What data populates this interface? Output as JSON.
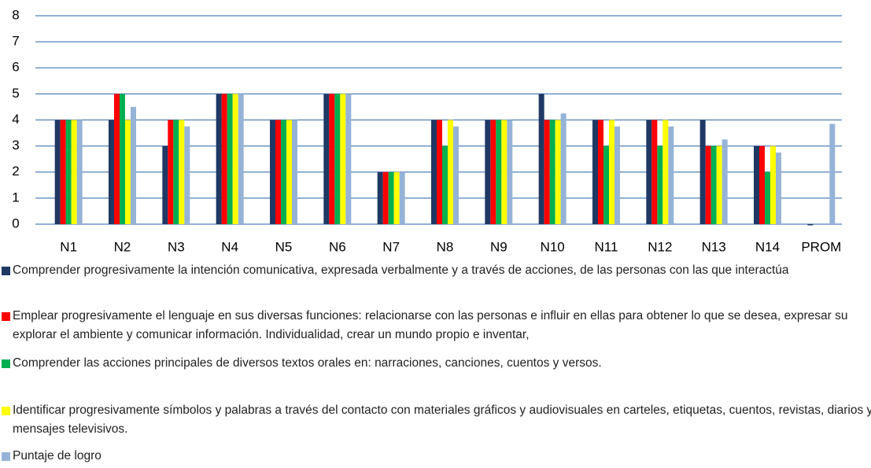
{
  "chart_data": {
    "type": "bar",
    "categories": [
      "N1",
      "N2",
      "N3",
      "N4",
      "N5",
      "N6",
      "N7",
      "N8",
      "N9",
      "N10",
      "N11",
      "N12",
      "N13",
      "N14",
      "PROM"
    ],
    "series": [
      {
        "name": "Comprender progresivamente la intención comunicativa, expresada verbalmente y a través de acciones, de las personas con las que interactúa",
        "color": "#1f3864",
        "values": [
          4,
          4,
          3,
          5,
          4,
          5,
          2,
          4,
          4,
          5,
          4,
          4,
          4,
          3,
          0
        ]
      },
      {
        "name": "Emplear progresivamente el lenguaje en sus diversas funciones: relacionarse con las personas e influir en ellas para obtener lo que se desea, expresar su explorar el ambiente y comunicar información. Individualidad, crear un mundo propio e inventar,",
        "color": "#ff0000",
        "values": [
          4,
          5,
          4,
          5,
          4,
          5,
          2,
          4,
          4,
          4,
          4,
          4,
          3,
          3,
          null
        ]
      },
      {
        "name": "Comprender las acciones principales de diversos textos orales en: narraciones, canciones, cuentos y versos.",
        "color": "#00b050",
        "values": [
          4,
          5,
          4,
          5,
          4,
          5,
          2,
          3,
          4,
          4,
          3,
          3,
          3,
          2,
          null
        ]
      },
      {
        "name": "Identificar progresivamente símbolos y palabras a través del contacto con materiales gráficos y audiovisuales en carteles, etiquetas, cuentos, revistas, diarios y mensajes televisivos.",
        "color": "#ffff00",
        "values": [
          4,
          4,
          4,
          5,
          4,
          5,
          2,
          4,
          4,
          4,
          4,
          4,
          3,
          3,
          null
        ]
      },
      {
        "name": "Puntaje de logro",
        "color": "#95b3d7",
        "values": [
          4,
          4.5,
          3.75,
          5,
          4,
          5,
          2,
          3.75,
          4,
          4.25,
          3.75,
          3.75,
          3.25,
          2.75,
          3.85
        ]
      }
    ],
    "ylim": [
      0,
      8
    ],
    "yticks": [
      0,
      1,
      2,
      3,
      4,
      5,
      6,
      7,
      8
    ],
    "grid": true
  }
}
